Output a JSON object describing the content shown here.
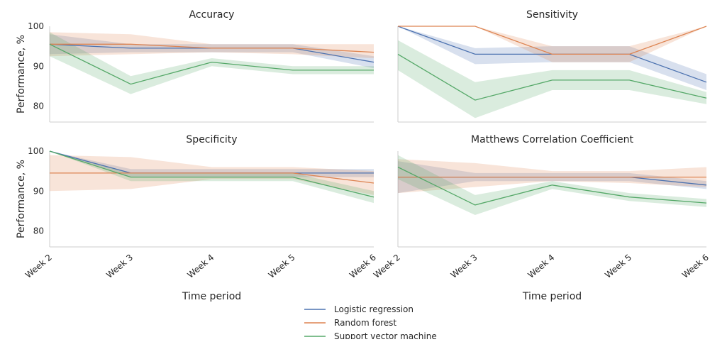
{
  "legend": {
    "placement": "bottom-center",
    "entries": [
      {
        "name": "Logistic regression",
        "color": "#4c72b0"
      },
      {
        "name": "Random forest",
        "color": "#dd8452"
      },
      {
        "name": "Support vector machine",
        "color": "#55a868"
      }
    ]
  },
  "chart_data": [
    {
      "type": "line",
      "title": "Accuracy",
      "ylabel": "Performance, %",
      "xlabel": "",
      "ylim": [
        76,
        100
      ],
      "yticks": [
        80,
        90,
        100
      ],
      "categories": [
        "Week 2",
        "Week 3",
        "Week 4",
        "Week 5",
        "Week 6"
      ],
      "grid": false,
      "series": [
        {
          "name": "Logistic regression",
          "values": [
            95.5,
            94.5,
            94.5,
            94.5,
            91.0
          ],
          "lower": [
            93.0,
            93.5,
            93.5,
            93.5,
            89.5
          ],
          "upper": [
            98.0,
            95.5,
            95.5,
            95.5,
            92.5
          ]
        },
        {
          "name": "Random forest",
          "values": [
            95.5,
            95.5,
            94.5,
            94.5,
            93.5
          ],
          "lower": [
            92.5,
            93.0,
            93.5,
            93.0,
            92.0
          ],
          "upper": [
            98.5,
            98.0,
            95.5,
            95.5,
            95.5
          ]
        },
        {
          "name": "Support vector machine",
          "values": [
            95.5,
            85.5,
            91.0,
            89.0,
            89.0
          ],
          "lower": [
            92.5,
            83.0,
            90.0,
            88.0,
            88.0
          ],
          "upper": [
            98.5,
            87.5,
            92.0,
            90.0,
            90.0
          ]
        }
      ]
    },
    {
      "type": "line",
      "title": "Sensitivity",
      "ylabel": "",
      "xlabel": "",
      "ylim": [
        76,
        100
      ],
      "yticks": [],
      "categories": [
        "Week 2",
        "Week 3",
        "Week 4",
        "Week 5",
        "Week 6"
      ],
      "grid": false,
      "series": [
        {
          "name": "Logistic regression",
          "values": [
            100.0,
            93.0,
            93.0,
            93.0,
            86.0
          ],
          "lower": [
            100.0,
            90.5,
            91.0,
            91.0,
            84.0
          ],
          "upper": [
            100.0,
            94.5,
            95.0,
            95.0,
            88.0
          ]
        },
        {
          "name": "Random forest",
          "values": [
            100.0,
            100.0,
            93.0,
            93.0,
            100.0
          ],
          "lower": [
            100.0,
            100.0,
            91.0,
            91.0,
            100.0
          ],
          "upper": [
            100.0,
            100.0,
            95.0,
            95.0,
            100.0
          ]
        },
        {
          "name": "Support vector machine",
          "values": [
            93.0,
            81.5,
            86.5,
            86.5,
            82.0
          ],
          "lower": [
            89.0,
            77.0,
            84.0,
            84.0,
            80.5
          ],
          "upper": [
            96.5,
            86.0,
            89.0,
            89.0,
            83.5
          ]
        }
      ]
    },
    {
      "type": "line",
      "title": "Specificity",
      "ylabel": "Performance, %",
      "xlabel": "Time period",
      "ylim": [
        76,
        100
      ],
      "yticks": [
        80,
        90,
        100
      ],
      "categories": [
        "Week 2",
        "Week 3",
        "Week 4",
        "Week 5",
        "Week 6"
      ],
      "grid": false,
      "series": [
        {
          "name": "Logistic regression",
          "values": [
            100.0,
            94.5,
            94.5,
            94.5,
            94.5
          ],
          "lower": [
            100.0,
            93.5,
            93.5,
            93.5,
            93.5
          ],
          "upper": [
            100.0,
            95.5,
            95.5,
            95.5,
            95.5
          ]
        },
        {
          "name": "Random forest",
          "values": [
            94.5,
            94.5,
            94.5,
            94.5,
            92.0
          ],
          "lower": [
            90.0,
            90.5,
            93.0,
            93.0,
            89.0
          ],
          "upper": [
            99.0,
            98.5,
            96.0,
            96.0,
            95.0
          ]
        },
        {
          "name": "Support vector machine",
          "values": [
            100.0,
            93.5,
            93.5,
            93.5,
            88.5
          ],
          "lower": [
            100.0,
            92.5,
            92.5,
            92.5,
            87.0
          ],
          "upper": [
            100.0,
            94.5,
            94.5,
            94.5,
            90.0
          ]
        }
      ]
    },
    {
      "type": "line",
      "title": "Matthews Correlation Coefficient",
      "ylabel": "",
      "xlabel": "Time period",
      "ylim": [
        76,
        100
      ],
      "yticks": [],
      "categories": [
        "Week 2",
        "Week 3",
        "Week 4",
        "Week 5",
        "Week 6"
      ],
      "grid": false,
      "series": [
        {
          "name": "Logistic regression",
          "values": [
            93.5,
            93.5,
            93.5,
            93.5,
            91.5
          ],
          "lower": [
            89.5,
            92.5,
            92.5,
            92.5,
            90.5
          ],
          "upper": [
            97.5,
            94.5,
            94.5,
            94.5,
            92.5
          ]
        },
        {
          "name": "Random forest",
          "values": [
            93.5,
            93.5,
            93.5,
            93.5,
            93.5
          ],
          "lower": [
            89.5,
            91.0,
            92.5,
            92.0,
            91.0
          ],
          "upper": [
            98.0,
            97.0,
            95.0,
            95.0,
            96.0
          ]
        },
        {
          "name": "Support vector machine",
          "values": [
            96.0,
            86.5,
            91.5,
            88.5,
            87.0
          ],
          "lower": [
            93.0,
            84.0,
            90.5,
            87.5,
            86.0
          ],
          "upper": [
            99.0,
            89.0,
            92.5,
            89.5,
            88.0
          ]
        }
      ]
    }
  ]
}
